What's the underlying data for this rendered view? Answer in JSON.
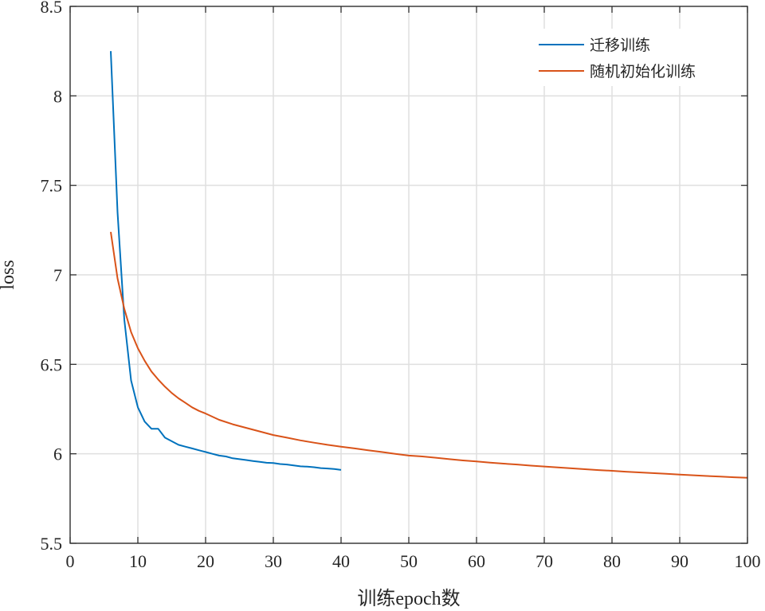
{
  "chart_data": {
    "type": "line",
    "xlabel": "训练epoch数",
    "ylabel": "loss",
    "xlim": [
      0,
      100
    ],
    "ylim": [
      5.5,
      8.5
    ],
    "xticks": [
      "0",
      "10",
      "20",
      "30",
      "40",
      "50",
      "60",
      "70",
      "80",
      "90",
      "100"
    ],
    "yticks": [
      "5.5",
      "6",
      "6.5",
      "7",
      "7.5",
      "8",
      "8.5"
    ],
    "grid": true,
    "legend_position": "top-right",
    "series": [
      {
        "name": "迁移训练",
        "color": "#0072BD",
        "x": [
          6,
          7,
          8,
          9,
          10,
          11,
          12,
          13,
          14,
          15,
          16,
          17,
          18,
          19,
          20,
          21,
          22,
          23,
          24,
          25,
          26,
          27,
          28,
          29,
          30,
          31,
          32,
          33,
          34,
          35,
          36,
          37,
          38,
          39,
          40
        ],
        "y": [
          8.25,
          7.35,
          6.75,
          6.41,
          6.26,
          6.18,
          6.14,
          6.14,
          6.09,
          6.07,
          6.05,
          6.04,
          6.03,
          6.02,
          6.01,
          6.0,
          5.99,
          5.985,
          5.975,
          5.97,
          5.965,
          5.96,
          5.955,
          5.95,
          5.948,
          5.943,
          5.94,
          5.935,
          5.93,
          5.928,
          5.925,
          5.92,
          5.918,
          5.915,
          5.91
        ]
      },
      {
        "name": "随机初始化训练",
        "color": "#D95319",
        "x": [
          6,
          7,
          8,
          9,
          10,
          11,
          12,
          13,
          14,
          15,
          16,
          17,
          18,
          19,
          20,
          22,
          24,
          26,
          28,
          30,
          32,
          34,
          36,
          38,
          40,
          42,
          44,
          46,
          48,
          50,
          52,
          54,
          56,
          58,
          60,
          62,
          64,
          66,
          68,
          70,
          72,
          74,
          76,
          78,
          80,
          82,
          84,
          86,
          88,
          90,
          92,
          94,
          96,
          98,
          100
        ],
        "y": [
          7.24,
          6.98,
          6.81,
          6.68,
          6.59,
          6.52,
          6.46,
          6.415,
          6.375,
          6.34,
          6.31,
          6.285,
          6.26,
          6.24,
          6.225,
          6.19,
          6.165,
          6.145,
          6.125,
          6.105,
          6.09,
          6.075,
          6.062,
          6.05,
          6.04,
          6.03,
          6.02,
          6.01,
          6.0,
          5.99,
          5.985,
          5.978,
          5.97,
          5.963,
          5.957,
          5.951,
          5.945,
          5.94,
          5.934,
          5.929,
          5.924,
          5.919,
          5.914,
          5.909,
          5.905,
          5.9,
          5.896,
          5.892,
          5.888,
          5.884,
          5.88,
          5.876,
          5.873,
          5.869,
          5.866
        ]
      }
    ]
  }
}
